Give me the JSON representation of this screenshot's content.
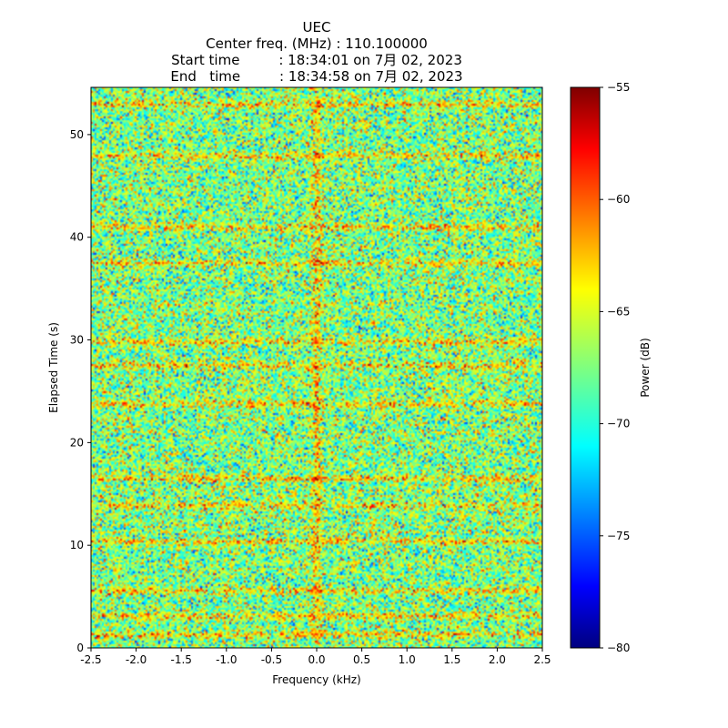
{
  "chart_data": {
    "type": "heatmap",
    "title_lines": [
      "UEC",
      "Center freq. (MHz) : 110.100000",
      "Start time         : 18:34:01 on 7月 02, 2023",
      "End   time         : 18:34:58 on 7月 02, 2023"
    ],
    "xlabel": "Frequency (kHz)",
    "ylabel": "Elapsed Time (s)",
    "xlim": [
      -2.5,
      2.5
    ],
    "ylim": [
      0,
      54.6
    ],
    "xticks": [
      "-2.5",
      "-2.0",
      "-1.5",
      "-1.0",
      "-0.5",
      "0.0",
      "0.5",
      "1.0",
      "1.5",
      "2.0",
      "2.5"
    ],
    "xtick_values": [
      -2.5,
      -2.0,
      -1.5,
      -1.0,
      -0.5,
      0.0,
      0.5,
      1.0,
      1.5,
      2.0,
      2.5
    ],
    "yticks": [
      "0",
      "10",
      "20",
      "30",
      "40",
      "50"
    ],
    "ytick_values": [
      0,
      10,
      20,
      30,
      40,
      50
    ],
    "colorbar": {
      "label": "Power (dB)",
      "range": [
        -80,
        -55
      ],
      "ticks": [
        "−55",
        "−60",
        "−65",
        "−70",
        "−75",
        "−80"
      ],
      "tick_values": [
        -55,
        -60,
        -65,
        -70,
        -75,
        -80
      ],
      "colormap": "jet"
    },
    "background_level_db": -67.5,
    "strong_bands_s": [
      1.2,
      3.0,
      5.5,
      10.3,
      13.8,
      16.5,
      23.8,
      27.5,
      29.8,
      37.5,
      41.0,
      48.0,
      53.0
    ],
    "center_line_khz": 0.0
  }
}
